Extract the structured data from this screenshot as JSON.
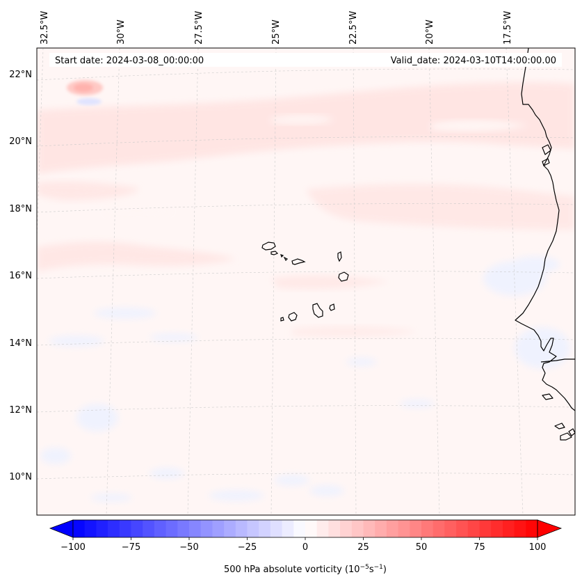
{
  "header": {
    "start_date": "Start date: 2024-03-08_00:00:00",
    "valid_date": "Valid_date: 2024-03-10T14:00:00.00"
  },
  "map": {
    "projection": "conic",
    "lon_labels": [
      "32.5°W",
      "30°W",
      "27.5°W",
      "25°W",
      "22.5°W",
      "20°W",
      "17.5°W"
    ],
    "lat_labels": [
      "22°N",
      "20°N",
      "18°N",
      "16°N",
      "14°N",
      "12°N",
      "10°N"
    ],
    "gridlines": "dashed",
    "features": [
      "Cape Verde islands",
      "West African coastline"
    ]
  },
  "colorbar": {
    "label_main": "500 hPa absolute vorticity (10",
    "label_sup1": "−5",
    "label_mid": "s",
    "label_sup2": "−1",
    "label_end": ")",
    "tick_labels": [
      "−100",
      "−75",
      "−50",
      "−25",
      "0",
      "25",
      "50",
      "75",
      "100"
    ],
    "min": -100,
    "max": 100,
    "levels": 40,
    "colormap": "bwr",
    "color_low": "#0000ff",
    "color_mid": "#ffffff",
    "color_high": "#ff0000"
  },
  "field_summary": "weak positive vorticity band across the north, near-zero elsewhere, small positive maximum near 32°W 21.8°N"
}
